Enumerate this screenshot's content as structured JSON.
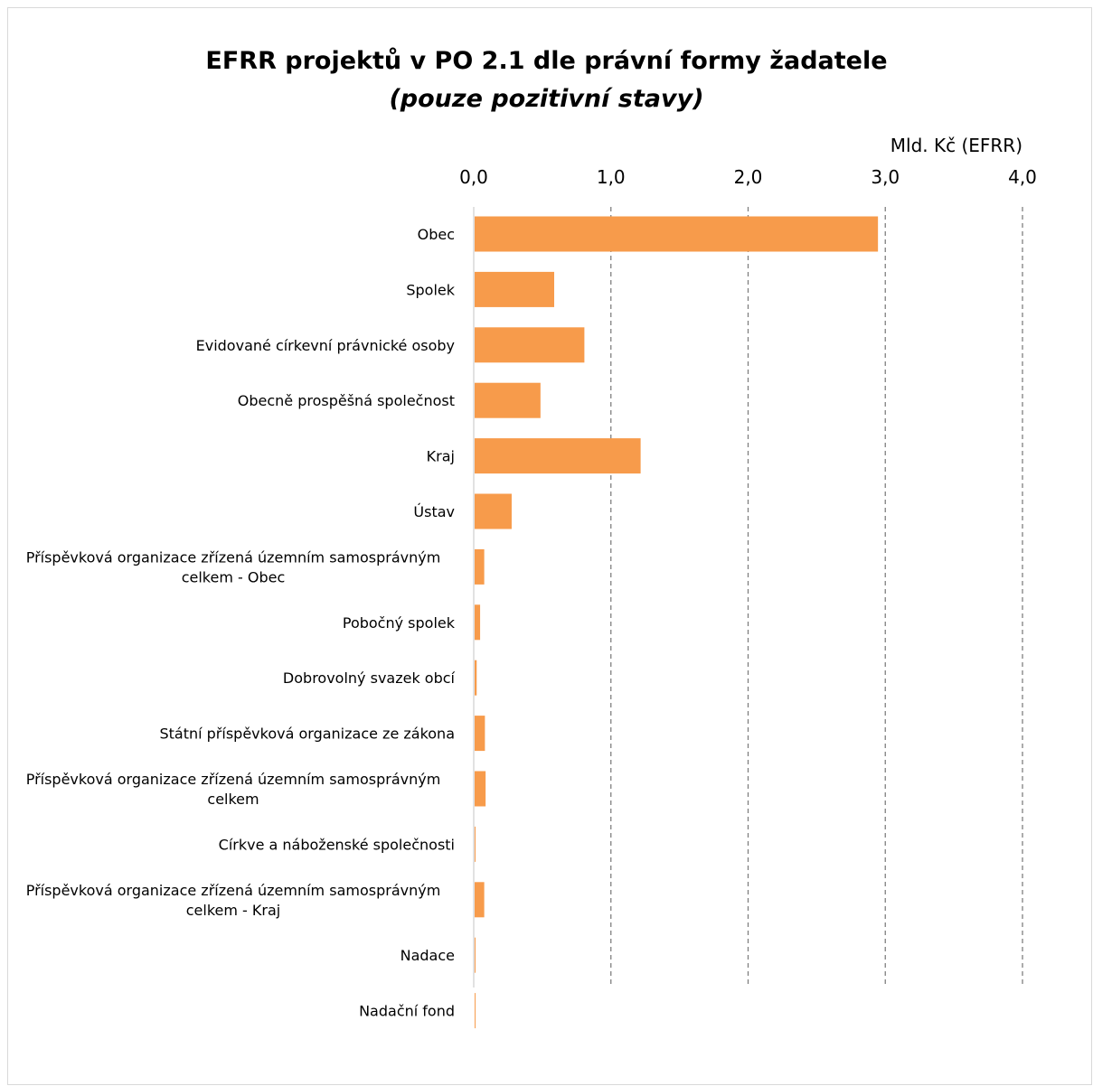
{
  "chart_data": {
    "type": "bar",
    "orientation": "horizontal",
    "title": "EFRR projektů v PO 2.1 dle právní formy žadatele",
    "subtitle": "(pouze pozitivní stavy)",
    "xlabel": "Mld. Kč (EFRR)",
    "ylabel": "",
    "xlim": [
      0,
      4
    ],
    "xticks": [
      "0,0",
      "1,0",
      "2,0",
      "3,0",
      "4,0"
    ],
    "grid": "vertical dashed",
    "bar_color": "#f79b4b",
    "categories": [
      [
        "Obec"
      ],
      [
        "Spolek"
      ],
      [
        "Evidované církevní právnické osoby"
      ],
      [
        "Obecně prospěšná společnost"
      ],
      [
        "Kraj"
      ],
      [
        "Ústav"
      ],
      [
        "Příspěvková organizace zřízená územním samosprávným",
        "celkem - Obec"
      ],
      [
        "Pobočný spolek"
      ],
      [
        "Dobrovolný svazek obcí"
      ],
      [
        "Státní příspěvková organizace ze zákona"
      ],
      [
        "Příspěvková organizace zřízená územním samosprávným",
        "celkem"
      ],
      [
        "Církve a náboženské společnosti"
      ],
      [
        "Příspěvková organizace zřízená územním samosprávným",
        "celkem - Kraj"
      ],
      [
        "Nadace"
      ],
      [
        "Nadační fond"
      ]
    ],
    "values": [
      2.94,
      0.58,
      0.8,
      0.48,
      1.21,
      0.27,
      0.07,
      0.04,
      0.015,
      0.075,
      0.08,
      0.005,
      0.07,
      0.002,
      0.002
    ]
  }
}
